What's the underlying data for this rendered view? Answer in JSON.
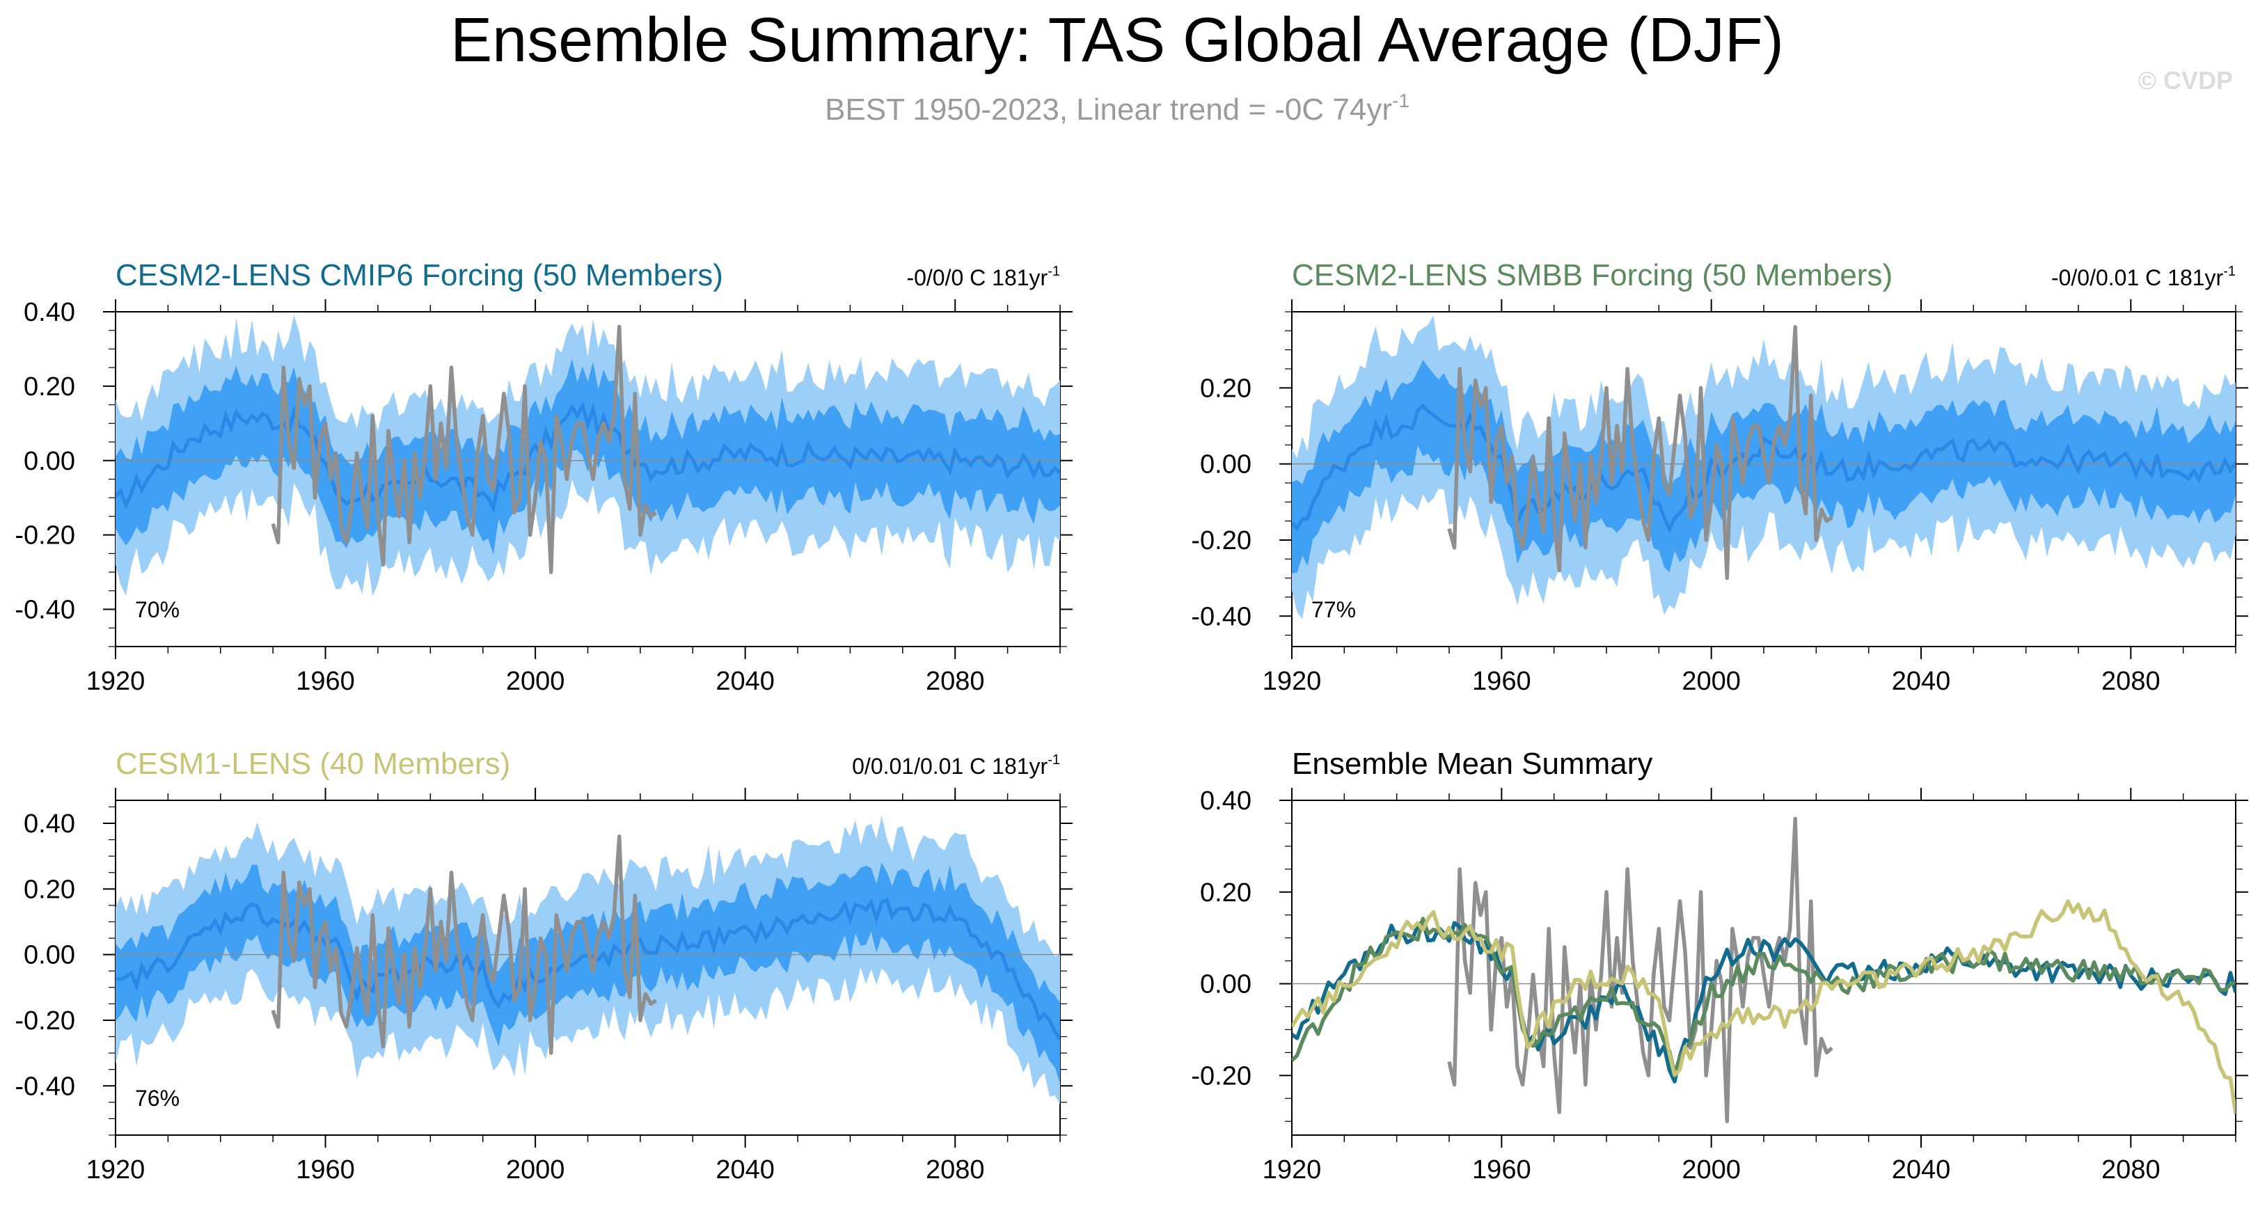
{
  "header": {
    "title": "Ensemble Summary: TAS Global Average (DJF)",
    "subtitle_main": "BEST 1950-2023, Linear trend = -0C 74yr",
    "subtitle_sup": "-1",
    "watermark": "© CVDP"
  },
  "colors": {
    "cmip6": "#116b8f",
    "smbb": "#5b8a5f",
    "lens1": "#c8c476",
    "obs": "#8f8f8f",
    "band_outer": "#9ccff7",
    "band_inner": "#3fa0f4",
    "ens_mean": "#2c88e6"
  },
  "chart_data": [
    {
      "id": "cmip6",
      "type": "area",
      "title": "CESM2-LENS CMIP6 Forcing (50 Members)",
      "trend_text": "-0/0/0 C 181yr",
      "trend_sup": "-1",
      "percent": "70%",
      "x_range": [
        1920,
        2100
      ],
      "ylim": [
        -0.5,
        0.4
      ],
      "x_ticks": [
        "1920",
        "1960",
        "2000",
        "2040",
        "2080"
      ],
      "y_ticks": [
        "0.40",
        "0.20",
        "0.00",
        "-0.20",
        "-0.40"
      ],
      "profile_knots": [
        [
          1920,
          -0.12
        ],
        [
          1928,
          -0.02
        ],
        [
          1935,
          0.07
        ],
        [
          1945,
          0.12
        ],
        [
          1955,
          0.1
        ],
        [
          1960,
          0.0
        ],
        [
          1963,
          -0.12
        ],
        [
          1967,
          -0.08
        ],
        [
          1975,
          -0.08
        ],
        [
          1980,
          -0.04
        ],
        [
          1985,
          -0.06
        ],
        [
          1992,
          -0.1
        ],
        [
          2000,
          0.02
        ],
        [
          2008,
          0.14
        ],
        [
          2014,
          0.08
        ],
        [
          2022,
          -0.02
        ],
        [
          2040,
          0.02
        ],
        [
          2060,
          0.01
        ],
        [
          2080,
          0.0
        ],
        [
          2100,
          -0.02
        ]
      ],
      "spread_inner": 0.11,
      "spread_outer": 0.22
    },
    {
      "id": "smbb",
      "type": "area",
      "title": "CESM2-LENS SMBB Forcing (50 Members)",
      "trend_text": "-0/0/0.01 C 181yr",
      "trend_sup": "-1",
      "percent": "77%",
      "x_range": [
        1920,
        2100
      ],
      "ylim": [
        -0.48,
        0.4
      ],
      "x_ticks": [
        "1920",
        "1960",
        "2000",
        "2040",
        "2080"
      ],
      "y_ticks": [
        "0.20",
        "0.00",
        "-0.20",
        "-0.40"
      ],
      "profile_knots": [
        [
          1920,
          -0.18
        ],
        [
          1928,
          -0.02
        ],
        [
          1935,
          0.08
        ],
        [
          1945,
          0.13
        ],
        [
          1955,
          0.1
        ],
        [
          1960,
          0.0
        ],
        [
          1963,
          -0.13
        ],
        [
          1970,
          -0.08
        ],
        [
          1980,
          -0.05
        ],
        [
          1987,
          -0.04
        ],
        [
          1992,
          -0.16
        ],
        [
          2000,
          -0.02
        ],
        [
          2010,
          0.04
        ],
        [
          2018,
          0.02
        ],
        [
          2025,
          -0.02
        ],
        [
          2040,
          0.02
        ],
        [
          2050,
          0.04
        ],
        [
          2060,
          0.02
        ],
        [
          2080,
          0.0
        ],
        [
          2100,
          -0.02
        ]
      ],
      "spread_inner": 0.11,
      "spread_outer": 0.22
    },
    {
      "id": "lens1",
      "type": "area",
      "title": "CESM1-LENS (40 Members)",
      "trend_text": "0/0.01/0.01 C 181yr",
      "trend_sup": "-1",
      "percent": "76%",
      "x_range": [
        1920,
        2100
      ],
      "ylim": [
        -0.55,
        0.47
      ],
      "x_ticks": [
        "1920",
        "1960",
        "2000",
        "2040",
        "2080"
      ],
      "y_ticks": [
        "0.40",
        "0.20",
        "0.00",
        "-0.20",
        "-0.40"
      ],
      "profile_knots": [
        [
          1920,
          -0.1
        ],
        [
          1930,
          -0.02
        ],
        [
          1938,
          0.08
        ],
        [
          1945,
          0.14
        ],
        [
          1955,
          0.08
        ],
        [
          1963,
          0.02
        ],
        [
          1965,
          -0.12
        ],
        [
          1980,
          -0.02
        ],
        [
          1990,
          -0.04
        ],
        [
          1992,
          -0.14
        ],
        [
          2000,
          -0.06
        ],
        [
          2020,
          0.02
        ],
        [
          2040,
          0.06
        ],
        [
          2050,
          0.1
        ],
        [
          2065,
          0.14
        ],
        [
          2080,
          0.12
        ],
        [
          2090,
          -0.04
        ],
        [
          2100,
          -0.26
        ]
      ],
      "spread_inner": 0.11,
      "spread_outer": 0.22
    },
    {
      "id": "summary",
      "type": "line",
      "title": "Ensemble Mean Summary",
      "x_range": [
        1920,
        2100
      ],
      "ylim": [
        -0.33,
        0.4
      ],
      "x_ticks": [
        "1920",
        "1960",
        "2000",
        "2040",
        "2080"
      ],
      "y_ticks": [
        "0.40",
        "0.20",
        "0.00",
        "-0.20"
      ],
      "series": [
        {
          "name": "CESM2-LENS CMIP6 Forcing",
          "color": "#116b8f",
          "knots": [
            [
              1920,
              -0.11
            ],
            [
              1930,
              0.02
            ],
            [
              1938,
              0.1
            ],
            [
              1945,
              0.12
            ],
            [
              1955,
              0.1
            ],
            [
              1962,
              0.02
            ],
            [
              1965,
              -0.13
            ],
            [
              1975,
              -0.08
            ],
            [
              1983,
              -0.02
            ],
            [
              1988,
              -0.1
            ],
            [
              1993,
              -0.2
            ],
            [
              2000,
              0.02
            ],
            [
              2007,
              0.1
            ],
            [
              2012,
              0.06
            ],
            [
              2016,
              0.1
            ],
            [
              2022,
              0.02
            ],
            [
              2030,
              0.02
            ],
            [
              2045,
              0.06
            ],
            [
              2055,
              0.04
            ],
            [
              2070,
              0.02
            ],
            [
              2100,
              0.0
            ]
          ]
        },
        {
          "name": "CESM2-LENS SMBB Forcing",
          "color": "#5b8a5f",
          "knots": [
            [
              1920,
              -0.17
            ],
            [
              1930,
              0.0
            ],
            [
              1938,
              0.09
            ],
            [
              1945,
              0.12
            ],
            [
              1955,
              0.1
            ],
            [
              1962,
              0.02
            ],
            [
              1965,
              -0.14
            ],
            [
              1975,
              -0.06
            ],
            [
              1983,
              -0.02
            ],
            [
              1988,
              -0.08
            ],
            [
              1993,
              -0.18
            ],
            [
              2000,
              -0.02
            ],
            [
              2010,
              0.06
            ],
            [
              2018,
              0.02
            ],
            [
              2025,
              0.0
            ],
            [
              2040,
              0.03
            ],
            [
              2050,
              0.06
            ],
            [
              2060,
              0.04
            ],
            [
              2080,
              0.02
            ],
            [
              2100,
              0.0
            ]
          ]
        },
        {
          "name": "CESM1-LENS",
          "color": "#c8c476",
          "knots": [
            [
              1920,
              -0.1
            ],
            [
              1930,
              0.0
            ],
            [
              1938,
              0.08
            ],
            [
              1945,
              0.14
            ],
            [
              1955,
              0.1
            ],
            [
              1962,
              0.06
            ],
            [
              1965,
              -0.12
            ],
            [
              1975,
              0.0
            ],
            [
              1985,
              0.02
            ],
            [
              1990,
              -0.05
            ],
            [
              1993,
              -0.18
            ],
            [
              2005,
              -0.06
            ],
            [
              2015,
              -0.08
            ],
            [
              2022,
              0.0
            ],
            [
              2035,
              0.02
            ],
            [
              2050,
              0.06
            ],
            [
              2060,
              0.12
            ],
            [
              2068,
              0.18
            ],
            [
              2075,
              0.14
            ],
            [
              2080,
              0.05
            ],
            [
              2088,
              -0.02
            ],
            [
              2095,
              -0.1
            ],
            [
              2100,
              -0.26
            ]
          ]
        }
      ]
    }
  ],
  "observations": {
    "name": "BEST",
    "years": [
      1950,
      1951,
      1952,
      1953,
      1954,
      1955,
      1956,
      1957,
      1958,
      1959,
      1960,
      1961,
      1962,
      1963,
      1964,
      1965,
      1966,
      1967,
      1968,
      1969,
      1970,
      1971,
      1972,
      1973,
      1974,
      1975,
      1976,
      1977,
      1978,
      1979,
      1980,
      1981,
      1982,
      1983,
      1984,
      1985,
      1986,
      1987,
      1988,
      1989,
      1990,
      1991,
      1992,
      1993,
      1994,
      1995,
      1996,
      1997,
      1998,
      1999,
      2000,
      2001,
      2002,
      2003,
      2004,
      2005,
      2006,
      2007,
      2008,
      2009,
      2010,
      2011,
      2012,
      2013,
      2014,
      2015,
      2016,
      2017,
      2018,
      2019,
      2020,
      2021,
      2022,
      2023
    ],
    "values": [
      -0.17,
      -0.22,
      0.25,
      0.05,
      -0.02,
      0.22,
      0.15,
      0.2,
      -0.1,
      0.06,
      0.1,
      -0.05,
      0.02,
      -0.18,
      -0.22,
      -0.12,
      0.02,
      -0.1,
      -0.18,
      0.12,
      -0.15,
      -0.28,
      0.08,
      -0.05,
      -0.15,
      0.0,
      -0.22,
      0.02,
      -0.1,
      0.02,
      0.2,
      -0.05,
      0.1,
      -0.02,
      0.25,
      0.05,
      -0.05,
      -0.15,
      -0.2,
      0.02,
      0.12,
      -0.05,
      -0.08,
      0.05,
      0.18,
      0.07,
      -0.14,
      -0.1,
      0.2,
      -0.2,
      -0.1,
      0.05,
      0.0,
      -0.3,
      0.12,
      0.05,
      -0.05,
      0.06,
      0.1,
      0.1,
      0.02,
      -0.05,
      0.06,
      0.1,
      0.05,
      0.12,
      0.36,
      -0.05,
      -0.13,
      0.18,
      -0.2,
      -0.12,
      -0.15,
      -0.14
    ]
  }
}
